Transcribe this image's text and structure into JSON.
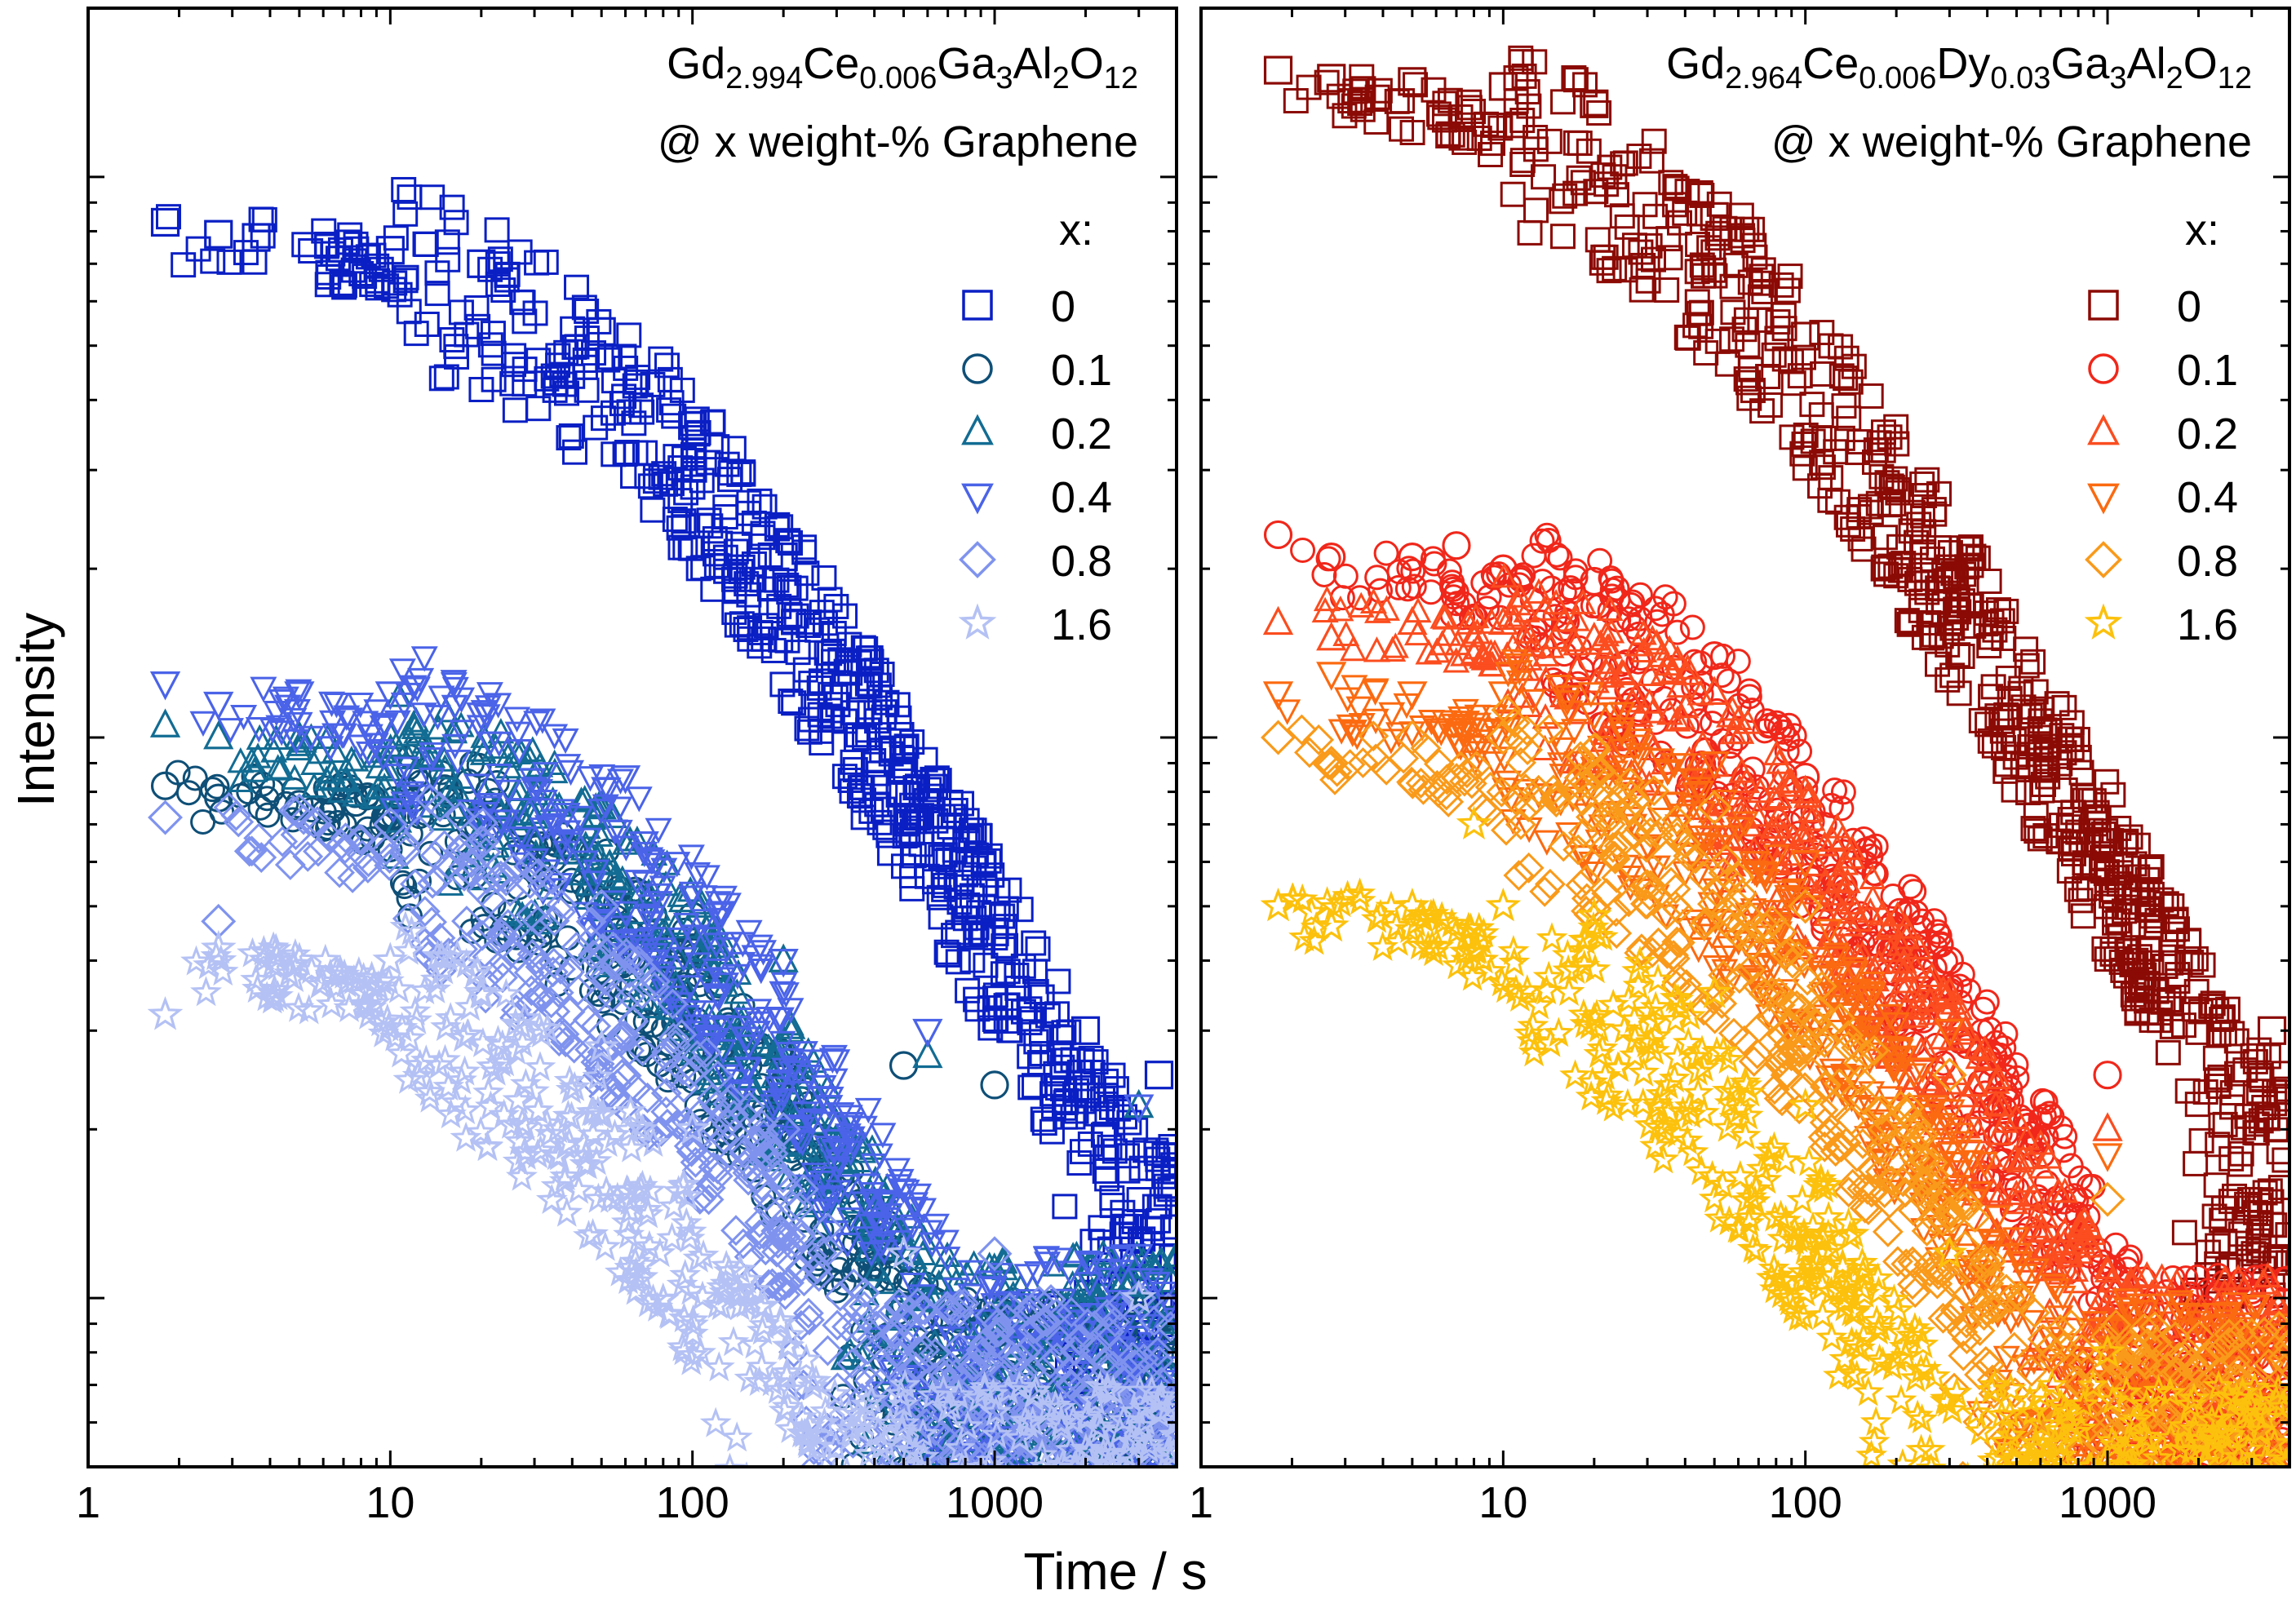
{
  "chart_data": [
    {
      "type": "scatter",
      "panel": "left",
      "title_line1": {
        "parts": [
          {
            "t": "Gd"
          },
          {
            "t": "2.994",
            "sub": true
          },
          {
            "t": "Ce"
          },
          {
            "t": "0.006",
            "sub": true
          },
          {
            "t": "Ga"
          },
          {
            "t": "3",
            "sub": true
          },
          {
            "t": "Al"
          },
          {
            "t": "2",
            "sub": true
          },
          {
            "t": "O"
          },
          {
            "t": "12",
            "sub": true
          }
        ]
      },
      "title_line2": "@ x weight-% Graphene",
      "legend_title": "x:",
      "xscale": "log",
      "yscale": "log",
      "xlim": [
        1,
        4000
      ],
      "xticks": [
        1,
        10,
        100,
        1000
      ],
      "xticklabels": [
        "1",
        "10",
        "100",
        "1000"
      ],
      "ylim": [
        0.05,
        20
      ],
      "series": [
        {
          "name": "0",
          "marker": "square",
          "color": "#0a1fc4",
          "plateau": 8,
          "knee": 55,
          "slope": 1.0,
          "floor": 0.2,
          "seed": 11,
          "points": [
            [
              1.8,
              8.3
            ],
            [
              2.7,
              7.9
            ],
            [
              3.6,
              7.8
            ],
            [
              10,
              7.4
            ],
            [
              20,
              7.0
            ],
            [
              50,
              5.3
            ],
            [
              100,
              3.6
            ],
            [
              200,
              2.1
            ],
            [
              500,
              0.95
            ],
            [
              1000,
              0.45
            ],
            [
              2000,
              0.3
            ],
            [
              3500,
              0.25
            ]
          ]
        },
        {
          "name": "0.1",
          "marker": "circle",
          "color": "#0e4f77",
          "plateau": 0.82,
          "knee": 60,
          "slope": 1.0,
          "floor": 0.1,
          "seed": 23,
          "points": [
            [
              1.8,
              0.82
            ],
            [
              2.7,
              0.78
            ],
            [
              5,
              0.76
            ],
            [
              10,
              0.72
            ],
            [
              20,
              0.72
            ],
            [
              40,
              0.63
            ],
            [
              100,
              0.48
            ],
            [
              500,
              0.26
            ],
            [
              1000,
              0.24
            ]
          ]
        },
        {
          "name": "0.2",
          "marker": "triangle-up",
          "color": "#126c93",
          "plateau": 0.98,
          "knee": 60,
          "slope": 1.0,
          "floor": 0.12,
          "seed": 37,
          "points": [
            [
              1.8,
              1.05
            ],
            [
              2.7,
              1.0
            ],
            [
              5,
              1.0
            ],
            [
              10,
              1.0
            ],
            [
              20,
              0.95
            ],
            [
              50,
              0.75
            ],
            [
              200,
              0.4
            ],
            [
              600,
              0.27
            ],
            [
              3000,
              0.22
            ]
          ]
        },
        {
          "name": "0.4",
          "marker": "triangle-down",
          "color": "#4a63e8",
          "plateau": 1.2,
          "knee": 55,
          "slope": 1.0,
          "floor": 0.12,
          "seed": 41,
          "points": [
            [
              1.8,
              1.25
            ],
            [
              2.7,
              1.15
            ],
            [
              5,
              1.2
            ],
            [
              10,
              1.2
            ],
            [
              20,
              1.1
            ],
            [
              60,
              0.85
            ],
            [
              200,
              0.4
            ],
            [
              600,
              0.3
            ],
            [
              3000,
              0.22
            ]
          ]
        },
        {
          "name": "0.8",
          "marker": "diamond",
          "color": "#7f93ee",
          "plateau": 0.74,
          "knee": 40,
          "slope": 1.0,
          "floor": 0.1,
          "seed": 53,
          "points": [
            [
              1.8,
              0.72
            ],
            [
              2.7,
              0.47
            ],
            [
              5,
              0.74
            ],
            [
              10,
              0.7
            ],
            [
              20,
              0.65
            ],
            [
              50,
              0.5
            ],
            [
              200,
              0.2
            ],
            [
              1000,
              0.12
            ],
            [
              3000,
              0.1
            ]
          ]
        },
        {
          "name": "1.6",
          "marker": "star",
          "color": "#b4c1f4",
          "plateau": 0.42,
          "knee": 35,
          "slope": 1.0,
          "floor": 0.07,
          "seed": 67,
          "points": [
            [
              1.8,
              0.32
            ],
            [
              2.7,
              0.42
            ],
            [
              5,
              0.4
            ],
            [
              10,
              0.4
            ],
            [
              20,
              0.35
            ],
            [
              50,
              0.28
            ],
            [
              100,
              0.2
            ],
            [
              500,
              0.12
            ],
            [
              3000,
              0.1
            ]
          ]
        }
      ]
    },
    {
      "type": "scatter",
      "panel": "right",
      "title_line1": {
        "parts": [
          {
            "t": "Gd"
          },
          {
            "t": "2.964",
            "sub": true
          },
          {
            "t": "Ce"
          },
          {
            "t": "0.006",
            "sub": true
          },
          {
            "t": "Dy"
          },
          {
            "t": "0.03",
            "sub": true
          },
          {
            "t": "Ga"
          },
          {
            "t": "3",
            "sub": true
          },
          {
            "t": "Al"
          },
          {
            "t": "2",
            "sub": true
          },
          {
            "t": "O"
          },
          {
            "t": "12",
            "sub": true
          }
        ]
      },
      "title_line2": "@ x weight-% Graphene",
      "legend_title": "x:",
      "xscale": "log",
      "yscale": "log",
      "xlim": [
        1,
        4000
      ],
      "xticks": [
        1,
        10,
        100,
        1000
      ],
      "xticklabels": [
        "1",
        "10",
        "100",
        "1000"
      ],
      "ylim": [
        0.05,
        20
      ],
      "series": [
        {
          "name": "0",
          "marker": "square",
          "color": "#8b0a05",
          "plateau": 15,
          "knee": 40,
          "slope": 1.0,
          "floor": 0.28,
          "seed": 71,
          "points": [
            [
              1.8,
              15.5
            ],
            [
              2.7,
              15.0
            ],
            [
              5,
              14.8
            ],
            [
              10,
              14.5
            ],
            [
              20,
              13.5
            ],
            [
              50,
              8.5
            ],
            [
              100,
              5.2
            ],
            [
              300,
              2.0
            ],
            [
              1000,
              0.65
            ],
            [
              3500,
              0.3
            ]
          ]
        },
        {
          "name": "0.1",
          "marker": "circle",
          "color": "#f0271a",
          "plateau": 2.1,
          "knee": 50,
          "slope": 1.0,
          "floor": 0.11,
          "seed": 83,
          "points": [
            [
              1.8,
              2.3
            ],
            [
              2.7,
              2.1
            ],
            [
              5,
              2.1
            ],
            [
              7,
              2.2
            ],
            [
              10,
              2.0
            ],
            [
              20,
              1.9
            ],
            [
              50,
              1.4
            ],
            [
              100,
              0.85
            ],
            [
              300,
              0.4
            ],
            [
              1000,
              0.25
            ]
          ]
        },
        {
          "name": "0.2",
          "marker": "triangle-up",
          "color": "#fb4d1f",
          "plateau": 1.7,
          "knee": 50,
          "slope": 1.0,
          "floor": 0.11,
          "seed": 97,
          "points": [
            [
              1.8,
              1.6
            ],
            [
              2.7,
              1.5
            ],
            [
              5,
              1.6
            ],
            [
              10,
              1.6
            ],
            [
              20,
              1.5
            ],
            [
              50,
              1.2
            ],
            [
              100,
              0.8
            ],
            [
              300,
              0.35
            ],
            [
              1000,
              0.2
            ]
          ]
        },
        {
          "name": "0.4",
          "marker": "triangle-down",
          "color": "#fb6a10",
          "plateau": 1.2,
          "knee": 45,
          "slope": 1.0,
          "floor": 0.1,
          "seed": 101,
          "points": [
            [
              1.8,
              1.2
            ],
            [
              2.7,
              1.3
            ],
            [
              5,
              1.2
            ],
            [
              10,
              1.2
            ],
            [
              20,
              1.1
            ],
            [
              50,
              0.9
            ],
            [
              100,
              0.6
            ],
            [
              300,
              0.3
            ],
            [
              1000,
              0.18
            ]
          ]
        },
        {
          "name": "0.8",
          "marker": "diamond",
          "color": "#f99a1a",
          "plateau": 1.0,
          "knee": 40,
          "slope": 1.0,
          "floor": 0.09,
          "seed": 113,
          "points": [
            [
              1.8,
              1.0
            ],
            [
              2.7,
              0.9
            ],
            [
              5,
              1.0
            ],
            [
              10,
              1.0
            ],
            [
              20,
              0.95
            ],
            [
              50,
              0.75
            ],
            [
              100,
              0.5
            ],
            [
              300,
              0.25
            ],
            [
              1000,
              0.15
            ]
          ]
        },
        {
          "name": "1.6",
          "marker": "star",
          "color": "#fcc10c",
          "plateau": 0.52,
          "knee": 32,
          "slope": 1.0,
          "floor": 0.07,
          "seed": 127,
          "points": [
            [
              1.8,
              0.5
            ],
            [
              2.7,
              0.46
            ],
            [
              5,
              0.5
            ],
            [
              8,
              0.7
            ],
            [
              10,
              0.5
            ],
            [
              20,
              0.48
            ],
            [
              50,
              0.35
            ],
            [
              100,
              0.22
            ],
            [
              300,
              0.12
            ],
            [
              1000,
              0.08
            ]
          ]
        }
      ]
    }
  ],
  "figure": {
    "xlabel": "Time / s",
    "ylabel": "Intensity"
  }
}
